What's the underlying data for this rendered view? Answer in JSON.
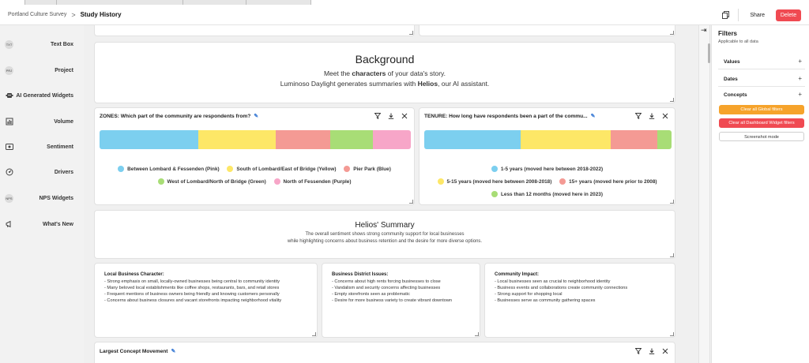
{
  "header": {
    "breadcrumb_parent": "Portland Culture Survey",
    "breadcrumb_sep": ">",
    "breadcrumb_current": "Study History",
    "share_label": "Share",
    "delete_label": "Delete"
  },
  "sidebar": {
    "items": [
      {
        "label": "Text Box",
        "icon": "text-box-icon",
        "icon_text": "TXT"
      },
      {
        "label": "Project",
        "icon": "project-icon",
        "icon_text": "PRJ"
      },
      {
        "label": "AI Generated Widgets",
        "icon": "ai-widgets-icon"
      },
      {
        "label": "Volume",
        "icon": "volume-icon"
      },
      {
        "label": "Sentiment",
        "icon": "sentiment-icon"
      },
      {
        "label": "Drivers",
        "icon": "drivers-icon"
      },
      {
        "label": "NPS Widgets",
        "icon": "nps-icon",
        "icon_text": "NPS"
      },
      {
        "label": "What's New",
        "icon": "megaphone-icon"
      }
    ]
  },
  "background": {
    "title": "Background",
    "line1_pre": "Meet the ",
    "line1_bold": "characters",
    "line1_post": " of your data's story.",
    "line2_pre": "Luminoso Daylight generates summaries with ",
    "line2_bold": "Helios",
    "line2_post": ", our AI assistant."
  },
  "zones": {
    "title": "ZONES: Which part of the community are respondents from?",
    "segments": [
      {
        "label": "Between Lombard & Fessenden (Pink)",
        "share": 0.317,
        "color": "#7ccfef"
      },
      {
        "label": "South of Lombard/East of Bridge (Yellow)",
        "share": 0.25,
        "color": "#fde767"
      },
      {
        "label": "Pier Park (Blue)",
        "share": 0.175,
        "color": "#f49a94"
      },
      {
        "label": "West of Lombard/North of Bridge (Green)",
        "share": 0.136,
        "color": "#a8dd76"
      },
      {
        "label": "North of Fessenden (Purple)",
        "share": 0.122,
        "color": "#f7a6c8"
      }
    ]
  },
  "tenure": {
    "title": "TENURE: How long have respondents been a part of the commu...",
    "segments": [
      {
        "label": "1-5 years (moved here between 2018-2022)",
        "share": 0.391,
        "color": "#7ccfef"
      },
      {
        "label": "5-15 years (moved here between 2008-2018)",
        "share": 0.362,
        "color": "#fde767"
      },
      {
        "label": "15+ years (moved here prior to 2008)",
        "share": 0.188,
        "color": "#f49a94"
      },
      {
        "label": "Less than 12 months (moved here in 2023)",
        "share": 0.059,
        "color": "#a8dd76"
      }
    ]
  },
  "helios": {
    "title": "Helios' Summary",
    "line1": "The overall sentiment shows strong community support for local businesses",
    "line2": "while highlighting concerns about business retention and the desire for more diverse options."
  },
  "insights": [
    {
      "title": "Local Business Character:",
      "lines": [
        "- Strong emphasis on small, locally-owned businesses being central to community identity",
        "- Many beloved local establishments like coffee shops, restaurants, bars, and retail stores",
        "- Frequent mentions of business owners being friendly and knowing customers personally",
        "- Concerns about business closures and vacant storefronts impacting neighborhood vitality"
      ]
    },
    {
      "title": "Business District Issues:",
      "lines": [
        "- Concerns about high rents forcing businesses to close",
        "- Vandalism and security concerns affecting businesses",
        "- Empty storefronts seen as problematic",
        "- Desire for more business variety to create vibrant downtown"
      ]
    },
    {
      "title": "Community Impact:",
      "lines": [
        "- Local businesses seen as crucial to neighborhood identity",
        "- Business events and collaborations create community connections",
        "- Strong support for shopping local",
        "- Businesses serve as community gathering spaces"
      ]
    }
  ],
  "largest": {
    "title": "Largest Concept Movement"
  },
  "filters": {
    "title": "Filters",
    "subtitle": "Applicable to all data",
    "sections": [
      "Values",
      "Dates",
      "Concepts"
    ],
    "plus": "+",
    "clear_global": "Clear all Global filters",
    "clear_dashboard": "Clear all Dashboard Widget filters",
    "screenshot": "Screenshot mode",
    "colors": {
      "orange": "#f6a32b",
      "red": "#f04a52"
    }
  }
}
